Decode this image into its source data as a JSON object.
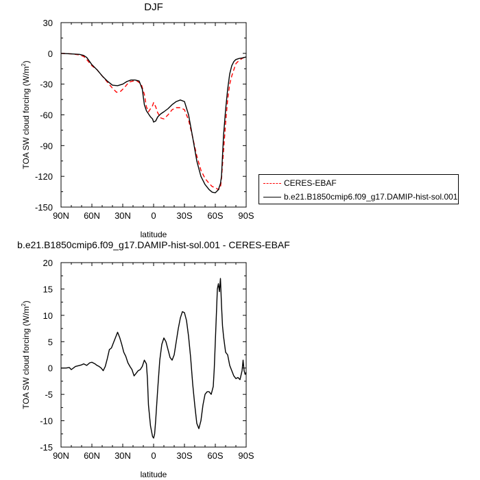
{
  "chart_data": [
    {
      "type": "line",
      "title": "DJF",
      "xlabel": "latitude",
      "ylabel": "TOA SW cloud forcing (W/m2)",
      "ylabel_parts": {
        "main": "TOA SW cloud forcing (W/m",
        "sup": "2",
        "close": ")"
      },
      "xlim": [
        90,
        -90
      ],
      "ylim": [
        -150,
        30
      ],
      "xticks": [
        90,
        60,
        30,
        0,
        -30,
        -60,
        -90
      ],
      "xtick_labels": [
        "90N",
        "60N",
        "30N",
        "0",
        "30S",
        "60S",
        "90S"
      ],
      "yticks": [
        30,
        0,
        -30,
        -60,
        -90,
        -120,
        -150
      ],
      "ytick_labels": [
        "30",
        "0",
        "-30",
        "-60",
        "-90",
        "-120",
        "-150"
      ],
      "legend": {
        "placement": "right, outside plot"
      },
      "series": [
        {
          "name": "CERES-EBAF",
          "color": "#ff0000",
          "dash": "dashed",
          "x": [
            90,
            80,
            72,
            68,
            65,
            60,
            55,
            50,
            45,
            40,
            36,
            32,
            28,
            24,
            20,
            16,
            12,
            9,
            7,
            5,
            3,
            1,
            0,
            -2,
            -4,
            -7,
            -10,
            -14,
            -18,
            -22,
            -26,
            -30,
            -34,
            -38,
            -42,
            -46,
            -50,
            -54,
            -57,
            -60,
            -63,
            -65,
            -66,
            -68,
            -70,
            -72,
            -74,
            -76,
            -78,
            -80,
            -83,
            -86,
            -88,
            -90
          ],
          "y": [
            0,
            -0.5,
            -1.5,
            -3,
            -6,
            -12,
            -16,
            -22,
            -28,
            -34,
            -38,
            -37,
            -33,
            -28,
            -27,
            -27,
            -30,
            -40,
            -52,
            -57,
            -54,
            -51,
            -48,
            -52,
            -58,
            -63,
            -64,
            -60,
            -55,
            -53,
            -53,
            -55,
            -65,
            -82,
            -100,
            -114,
            -122,
            -127,
            -130,
            -131,
            -133,
            -131,
            -122,
            -95,
            -68,
            -45,
            -30,
            -22,
            -16,
            -10,
            -7,
            -5,
            -4,
            -3
          ]
        },
        {
          "name": "b.e21.B1850cmip6.f09_g17.DAMIP-hist-sol.001",
          "color": "#000000",
          "dash": "solid",
          "x": [
            90,
            80,
            72,
            68,
            65,
            60,
            55,
            50,
            45,
            40,
            35,
            30,
            26,
            22,
            18,
            14,
            11,
            9,
            7,
            5,
            3,
            1,
            0,
            -2,
            -4,
            -7,
            -10,
            -14,
            -18,
            -22,
            -26,
            -30,
            -34,
            -38,
            -42,
            -46,
            -50,
            -54,
            -57,
            -60,
            -63,
            -65,
            -66,
            -67,
            -68,
            -70,
            -72,
            -74,
            -76,
            -78,
            -80,
            -83,
            -86,
            -88,
            -90
          ],
          "y": [
            0,
            -0.5,
            -1,
            -2,
            -4,
            -11,
            -16,
            -22,
            -27,
            -31,
            -31.5,
            -30,
            -27.5,
            -26,
            -26,
            -27,
            -35,
            -50,
            -56,
            -59,
            -62,
            -64,
            -67,
            -66,
            -62,
            -59,
            -57,
            -54,
            -50,
            -47,
            -45.5,
            -47,
            -60,
            -82,
            -105,
            -120,
            -128,
            -133,
            -135.5,
            -136,
            -133,
            -127,
            -120,
            -100,
            -80,
            -55,
            -35,
            -20,
            -12,
            -8,
            -6,
            -5,
            -4.5,
            -4,
            -3.5
          ]
        }
      ]
    },
    {
      "type": "line",
      "title": "b.e21.B1850cmip6.f09_g17.DAMIP-hist-sol.001 - CERES-EBAF",
      "xlabel": "latitude",
      "ylabel": "TOA SW cloud forcing (W/m2)",
      "ylabel_parts": {
        "main": "TOA SW cloud forcing (W/m",
        "sup": "2",
        "close": ")"
      },
      "xlim": [
        90,
        -90
      ],
      "ylim": [
        -15,
        20
      ],
      "xticks": [
        90,
        60,
        30,
        0,
        -30,
        -60,
        -90
      ],
      "xtick_labels": [
        "90N",
        "60N",
        "30N",
        "0",
        "30S",
        "60S",
        "90S"
      ],
      "yticks": [
        20,
        15,
        10,
        5,
        0,
        -5,
        -10,
        -15
      ],
      "ytick_labels": [
        "20",
        "15",
        "10",
        "5",
        "0",
        "-5",
        "-10",
        "-15"
      ],
      "series": [
        {
          "color": "#000000",
          "dash": "solid",
          "x": [
            90,
            85,
            82,
            80,
            76,
            72,
            70,
            68,
            65,
            62,
            60,
            57,
            55,
            53,
            51,
            49,
            47,
            45,
            43,
            41,
            39,
            37,
            35,
            33,
            31,
            29,
            27,
            25,
            23,
            21,
            19,
            17,
            15,
            13,
            11,
            9,
            7,
            6,
            5,
            3,
            1,
            0,
            -1,
            -2,
            -4,
            -6,
            -8,
            -10,
            -12,
            -14,
            -16,
            -18,
            -20,
            -22,
            -24,
            -26,
            -28,
            -30,
            -32,
            -34,
            -36,
            -38,
            -40,
            -42,
            -44,
            -46,
            -48,
            -50,
            -52,
            -54,
            -56,
            -58,
            -59,
            -60,
            -61,
            -62,
            -63,
            -64,
            -65,
            -66,
            -67,
            -68,
            -70,
            -72,
            -74,
            -76,
            -78,
            -80,
            -82,
            -84,
            -86,
            -87,
            -88,
            -89,
            -90
          ],
          "y": [
            0,
            0,
            0.1,
            -0.3,
            0.3,
            0.5,
            0.6,
            0.8,
            0.5,
            1.0,
            1.1,
            0.8,
            0.5,
            0.3,
            0.0,
            -0.5,
            0.3,
            1.8,
            3.5,
            3.8,
            4.8,
            5.8,
            6.8,
            5.8,
            4.5,
            3.0,
            2.2,
            1.0,
            0.3,
            -0.3,
            -1.5,
            -1.0,
            -0.5,
            -0.3,
            0.3,
            1.5,
            0.8,
            -2.0,
            -7.0,
            -11.0,
            -13.0,
            -13.3,
            -12.5,
            -10.0,
            -4.0,
            1.5,
            4.5,
            5.7,
            5.0,
            3.5,
            2.0,
            1.5,
            2.5,
            5.0,
            7.5,
            9.5,
            10.7,
            10.5,
            9.0,
            6.0,
            2.0,
            -3.0,
            -7.0,
            -10.5,
            -11.5,
            -10.0,
            -7.0,
            -5.0,
            -4.5,
            -4.5,
            -5.0,
            -3.5,
            0.0,
            5.0,
            10.0,
            15.0,
            16.0,
            14.5,
            17.0,
            12.0,
            8.0,
            6.0,
            3.0,
            2.5,
            0.5,
            -0.5,
            -1.5,
            -2.0,
            -1.8,
            -2.2,
            -0.5,
            1.5,
            -0.5,
            -1.2,
            -0.8
          ]
        }
      ]
    }
  ]
}
